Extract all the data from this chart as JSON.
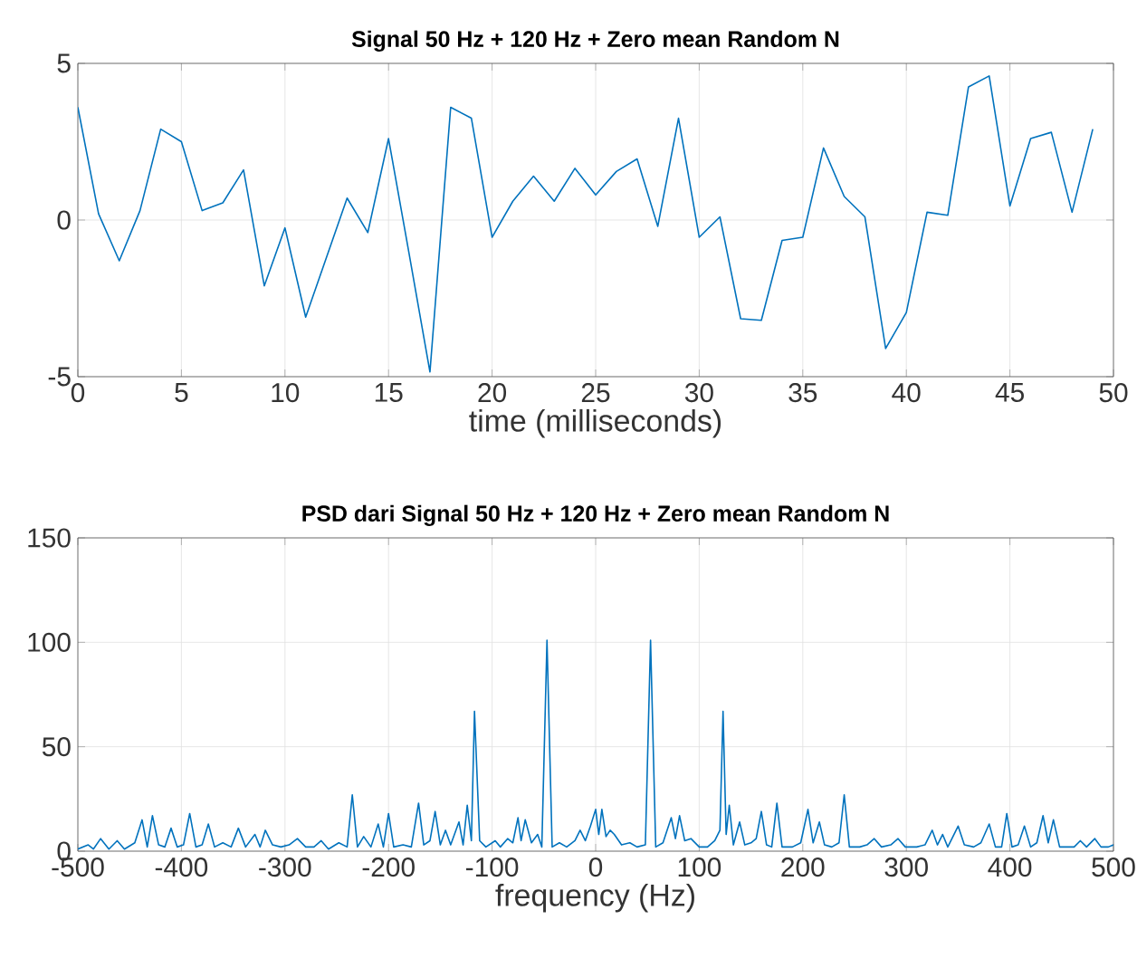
{
  "chart_data": [
    {
      "type": "line",
      "title": "Signal 50 Hz + 120 Hz + Zero mean Random N",
      "xlabel": "time (milliseconds)",
      "grid": true,
      "color": "#0072bd",
      "x": [
        0,
        1,
        2,
        3,
        4,
        5,
        6,
        7,
        8,
        9,
        10,
        11,
        12,
        13,
        14,
        15,
        16,
        17,
        18,
        19,
        20,
        21,
        22,
        23,
        24,
        25,
        26,
        27,
        28,
        29,
        30,
        31,
        32,
        33,
        34,
        35,
        36,
        37,
        38,
        39,
        40,
        41,
        42,
        43,
        44,
        45,
        46,
        47,
        48,
        49
      ],
      "values": [
        3.6,
        0.2,
        -1.3,
        0.3,
        2.9,
        2.5,
        0.3,
        0.55,
        1.6,
        -2.1,
        -0.25,
        -3.1,
        -1.2,
        0.7,
        -0.4,
        2.6,
        -1.1,
        -4.85,
        3.6,
        3.25,
        -0.55,
        0.6,
        1.4,
        0.6,
        1.65,
        0.8,
        1.55,
        1.95,
        -0.2,
        3.25,
        -0.55,
        0.1,
        -3.15,
        -3.2,
        -0.65,
        -0.55,
        2.3,
        0.75,
        0.1,
        -4.1,
        -2.95,
        0.25,
        0.15,
        4.25,
        4.6,
        0.45,
        2.6,
        2.8,
        0.25,
        2.9
      ],
      "xlim": [
        0,
        50
      ],
      "ylim": [
        -5,
        5
      ],
      "xticks": [
        0,
        5,
        10,
        15,
        20,
        25,
        30,
        35,
        40,
        45,
        50
      ],
      "yticks": [
        -5,
        0,
        5
      ]
    },
    {
      "type": "line",
      "title": "PSD dari Signal 50 Hz + 120 Hz + Zero mean Random N",
      "xlabel": "frequency (Hz)",
      "grid": true,
      "color": "#0072bd",
      "x": [
        -500,
        -490,
        -485,
        -478,
        -470,
        -462,
        -455,
        -445,
        -438,
        -433,
        -428,
        -422,
        -416,
        -410,
        -404,
        -398,
        -392,
        -386,
        -380,
        -374,
        -368,
        -360,
        -352,
        -345,
        -338,
        -329,
        -324,
        -319,
        -312,
        -304,
        -296,
        -288,
        -280,
        -272,
        -265,
        -258,
        -248,
        -240,
        -235,
        -230,
        -224,
        -217,
        -210,
        -205,
        -200,
        -195,
        -186,
        -178,
        -171,
        -166,
        -160,
        -155,
        -150,
        -145,
        -140,
        -132,
        -128,
        -124,
        -120,
        -117,
        -112,
        -106,
        -97,
        -92,
        -85,
        -80,
        -75,
        -72,
        -68,
        -62,
        -56,
        -52,
        -47,
        -42,
        -35,
        -28,
        -20,
        -15,
        -10,
        -5,
        0,
        3,
        6,
        10,
        14,
        18,
        25,
        33,
        40,
        48,
        53,
        58,
        65,
        73,
        77,
        81,
        86,
        92,
        100,
        108,
        115,
        120,
        123,
        126,
        129,
        133,
        139,
        144,
        150,
        155,
        160,
        165,
        170,
        175,
        180,
        190,
        198,
        205,
        210,
        216,
        221,
        228,
        235,
        240,
        245,
        255,
        262,
        269,
        276,
        285,
        292,
        299,
        310,
        318,
        325,
        330,
        335,
        340,
        350,
        356,
        365,
        372,
        380,
        386,
        392,
        397,
        402,
        408,
        414,
        420,
        426,
        432,
        437,
        442,
        448,
        456,
        462,
        468,
        474,
        482,
        488,
        495,
        500
      ],
      "values": [
        1,
        3,
        1,
        6,
        1,
        5,
        1,
        4,
        15,
        2,
        17,
        3,
        2,
        11,
        2,
        3,
        18,
        2,
        3,
        13,
        2,
        4,
        2,
        11,
        2,
        8,
        2,
        10,
        3,
        2,
        3,
        6,
        2,
        2,
        5,
        1,
        4,
        2,
        27,
        2,
        7,
        2,
        13,
        2,
        18,
        2,
        3,
        2,
        23,
        3,
        5,
        19,
        3,
        10,
        3,
        14,
        3,
        22,
        5,
        67,
        5,
        2,
        5,
        2,
        6,
        4,
        16,
        5,
        15,
        4,
        8,
        2,
        101,
        2,
        4,
        2,
        5,
        10,
        5,
        12,
        20,
        8,
        20,
        7,
        10,
        8,
        3,
        4,
        2,
        3,
        101,
        2,
        4,
        16,
        6,
        17,
        5,
        6,
        2,
        2,
        5,
        10,
        67,
        8,
        22,
        3,
        14,
        3,
        4,
        6,
        19,
        3,
        2,
        23,
        2,
        2,
        4,
        20,
        4,
        14,
        3,
        2,
        4,
        27,
        2,
        2,
        3,
        6,
        2,
        3,
        6,
        2,
        2,
        3,
        10,
        3,
        8,
        2,
        12,
        3,
        2,
        4,
        13,
        2,
        2,
        18,
        2,
        3,
        12,
        2,
        4,
        17,
        4,
        15,
        2,
        2,
        2,
        5,
        2,
        6,
        2,
        2,
        3
      ],
      "xlim": [
        -500,
        500
      ],
      "ylim": [
        0,
        150
      ],
      "xticks": [
        -500,
        -400,
        -300,
        -200,
        -100,
        0,
        100,
        200,
        300,
        400,
        500
      ],
      "yticks": [
        0,
        50,
        100,
        150
      ]
    }
  ]
}
